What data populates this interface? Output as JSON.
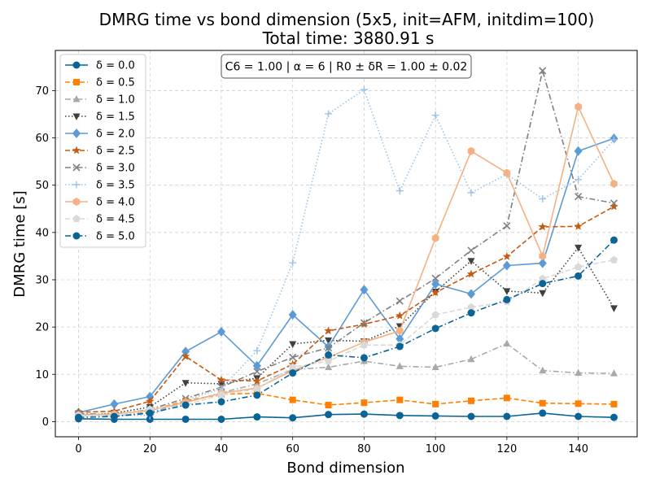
{
  "chart_data": {
    "type": "line",
    "title": "DMRG time vs bond dimension (5x5, init=AFM, initdim=100)",
    "subtitle": "Total time: 3880.91 s",
    "xlabel": "Bond dimension",
    "ylabel": "DMRG time [s]",
    "xlim": [
      -6.5,
      156.5
    ],
    "ylim": [
      -3.2,
      78.5
    ],
    "xticks": [
      0,
      20,
      40,
      60,
      80,
      100,
      120,
      140
    ],
    "yticks": [
      0,
      10,
      20,
      30,
      40,
      50,
      60,
      70
    ],
    "grid": true,
    "legend_position": "upper left",
    "annotation": "C6 = 1.00 | α = 6 | R0 ± δR = 1.00 ± 0.02",
    "x": [
      0,
      10,
      20,
      30,
      40,
      50,
      60,
      70,
      80,
      90,
      100,
      110,
      120,
      130,
      140,
      150
    ],
    "series": [
      {
        "name": "δ = 0.0",
        "color": "#0a6496",
        "dash": "solid",
        "marker": "circle",
        "values": [
          0.6,
          0.5,
          0.5,
          0.5,
          0.5,
          1.0,
          0.8,
          1.5,
          1.6,
          1.3,
          1.2,
          1.1,
          1.1,
          1.8,
          1.1,
          0.9
        ]
      },
      {
        "name": "δ = 0.5",
        "color": "#ff8000",
        "dash": "dashed",
        "marker": "square",
        "values": [
          1.5,
          1.5,
          2.3,
          4.4,
          5.8,
          6.0,
          4.6,
          3.5,
          4.0,
          4.6,
          3.7,
          4.4,
          5.0,
          3.9,
          3.8,
          3.7
        ]
      },
      {
        "name": "δ = 1.0",
        "color": "#a9a9a9",
        "dash": "dashdot",
        "marker": "triangle-up",
        "values": [
          1.6,
          1.1,
          2.0,
          4.0,
          6.1,
          8.0,
          11.0,
          11.5,
          12.8,
          11.7,
          11.5,
          13.2,
          16.5,
          10.8,
          10.3,
          10.2
        ]
      },
      {
        "name": "δ = 1.5",
        "color": "#404040",
        "dash": "dotted",
        "marker": "triangle-down",
        "values": [
          1.2,
          1.8,
          3.1,
          8.2,
          8.0,
          9.2,
          16.4,
          17.2,
          17.0,
          20.2,
          27.5,
          34.0,
          27.6,
          27.2,
          36.8,
          24.0
        ]
      },
      {
        "name": "δ = 2.0",
        "color": "#5b9bd5",
        "dash": "solid",
        "marker": "diamond",
        "values": [
          1.9,
          3.7,
          5.3,
          14.8,
          19.0,
          11.8,
          22.6,
          15.8,
          27.9,
          17.5,
          29.1,
          27.0,
          33.0,
          33.5,
          57.2,
          59.9
        ]
      },
      {
        "name": "δ = 2.5",
        "color": "#c55a11",
        "dash": "dashed",
        "marker": "star",
        "values": [
          2.0,
          2.2,
          4.3,
          13.8,
          8.8,
          8.6,
          12.1,
          19.2,
          20.6,
          22.4,
          27.3,
          31.2,
          34.9,
          41.2,
          41.3,
          45.5
        ]
      },
      {
        "name": "δ = 3.0",
        "color": "#808080",
        "dash": "dashdot",
        "marker": "x",
        "values": [
          1.7,
          1.5,
          2.6,
          4.9,
          7.3,
          10.6,
          13.6,
          15.6,
          20.9,
          25.5,
          30.3,
          36.2,
          41.4,
          74.2,
          47.6,
          46.2
        ]
      },
      {
        "name": "δ = 3.5",
        "color": "#9dc3e6",
        "dash": "dotted",
        "marker": "plus",
        "values": [
          1.2,
          1.4,
          1.3,
          4.5,
          7.0,
          15.0,
          33.6,
          65.1,
          70.2,
          48.8,
          64.8,
          48.4,
          52.3,
          47.1,
          51.2,
          59.6
        ]
      },
      {
        "name": "δ = 4.0",
        "color": "#f4b183",
        "dash": "solid",
        "marker": "hexagon",
        "values": [
          1.4,
          1.6,
          2.4,
          4.1,
          6.0,
          7.1,
          10.8,
          13.6,
          16.8,
          19.2,
          38.8,
          57.2,
          52.6,
          35.0,
          66.6,
          50.3
        ]
      },
      {
        "name": "δ = 4.5",
        "color": "#d9d9d9",
        "dash": "dashed",
        "marker": "pentagon",
        "values": [
          1.3,
          1.3,
          2.6,
          3.5,
          5.7,
          6.9,
          11.5,
          12.8,
          16.2,
          16.2,
          22.6,
          24.2,
          25.3,
          30.2,
          32.7,
          34.2
        ]
      },
      {
        "name": "δ = 5.0",
        "color": "#0a6496",
        "dash": "dashdot",
        "marker": "circle",
        "values": [
          0.9,
          1.1,
          1.8,
          3.5,
          4.2,
          5.6,
          10.3,
          14.1,
          13.5,
          15.9,
          19.7,
          23.0,
          25.8,
          29.2,
          30.8,
          38.4
        ]
      }
    ]
  }
}
